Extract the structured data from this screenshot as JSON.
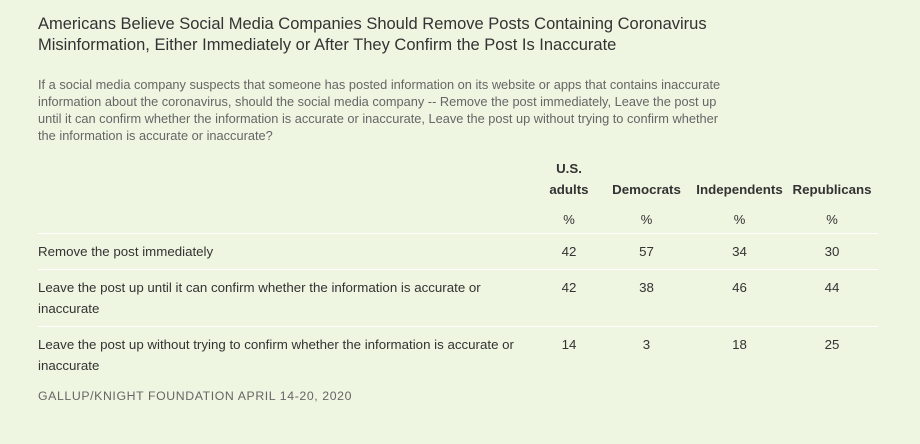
{
  "title": "Americans Believe Social Media Companies Should Remove Posts Containing Coronavirus Misinformation, Either Immediately or After They Confirm the Post Is Inaccurate",
  "question": "If a social media company suspects that someone has posted information on its website or apps that contains inaccurate information about the coronavirus, should the social media company -- Remove the post immediately, Leave the post up until it can confirm whether the information is accurate or inaccurate, Leave the post up without trying to confirm whether the information is accurate or inaccurate?",
  "source": "GALLUP/KNIGHT FOUNDATION APRIL 14-20, 2020",
  "chart_data": {
    "type": "table",
    "columns": [
      "U.S. adults",
      "Democrats",
      "Independents",
      "Republicans"
    ],
    "units": [
      "%",
      "%",
      "%",
      "%"
    ],
    "rows": [
      {
        "label": "Remove the post immediately",
        "values": [
          42,
          57,
          34,
          30
        ]
      },
      {
        "label": "Leave the post up until it can confirm whether the information is accurate or inaccurate",
        "values": [
          42,
          38,
          46,
          44
        ]
      },
      {
        "label": "Leave the post up without trying to confirm whether the information is accurate or inaccurate",
        "values": [
          14,
          3,
          18,
          25
        ]
      }
    ]
  }
}
